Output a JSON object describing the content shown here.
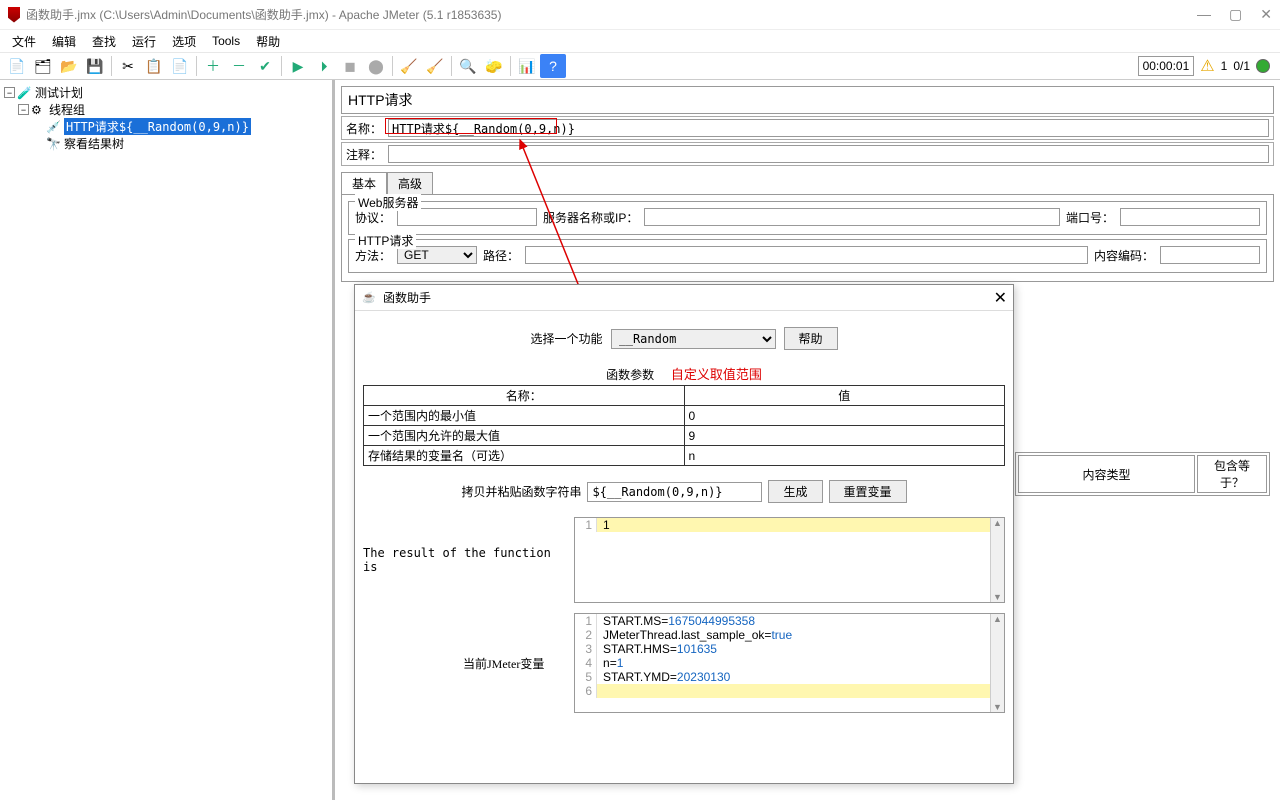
{
  "window": {
    "title": "函数助手.jmx (C:\\Users\\Admin\\Documents\\函数助手.jmx) - Apache JMeter (5.1 r1853635)"
  },
  "menu": {
    "items": [
      "文件",
      "编辑",
      "查找",
      "运行",
      "选项",
      "Tools",
      "帮助"
    ]
  },
  "status": {
    "time": "00:00:01",
    "warn_count": "1",
    "run_ratio": "0/1"
  },
  "tree": {
    "root": "测试计划",
    "thread": "线程组",
    "http": "HTTP请求${__Random(0,9,n)}",
    "result": "察看结果树"
  },
  "http_panel": {
    "title": "HTTP请求",
    "name_label": "名称：",
    "name_value": "HTTP请求${__Random(0,9,n)}",
    "comment_label": "注释：",
    "tab_basic": "基本",
    "tab_adv": "高级",
    "web_server": "Web服务器",
    "protocol": "协议：",
    "server": "服务器名称或IP：",
    "port": "端口号：",
    "http_req": "HTTP请求",
    "method": "方法：",
    "method_value": "GET",
    "path": "路径：",
    "encoding": "内容编码："
  },
  "headers": {
    "col1": "内容类型",
    "col2": "包含等于？"
  },
  "dialog": {
    "title": "函数助手",
    "select_label": "选择一个功能",
    "select_value": "__Random",
    "help_btn": "帮助",
    "param_title": "函数参数",
    "annot_range": "自定义取值范围",
    "col_name": "名称：",
    "col_value": "值",
    "rows": [
      {
        "n": "一个范围内的最小值",
        "v": "0"
      },
      {
        "n": "一个范围内允许的最大值",
        "v": "9"
      },
      {
        "n": "存储结果的变量名（可选）",
        "v": "n"
      }
    ],
    "copy_label": "拷贝并粘贴函数字符串",
    "copy_value": "${__Random(0,9,n)}",
    "gen_btn": "生成",
    "reset_btn": "重置变量",
    "result_label": "The result of the function is",
    "result_value": "1",
    "vars_label": "当前JMeter变量",
    "vars": [
      {
        "k": "START.MS",
        "v": "1675044995358",
        "t": "num"
      },
      {
        "k": "JMeterThread.last_sample_ok",
        "v": "true",
        "t": "bool"
      },
      {
        "k": "START.HMS",
        "v": "101635",
        "t": "num"
      },
      {
        "k": "n",
        "v": "1",
        "t": "num"
      },
      {
        "k": "START.YMD",
        "v": "20230130",
        "t": "num"
      }
    ]
  },
  "colors": {
    "accent_red": "#d00",
    "select_bg": "#1a6fd8"
  }
}
